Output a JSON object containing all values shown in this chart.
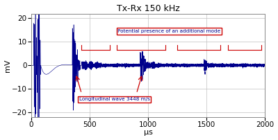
{
  "title": "Tx-Rx 150 kHz",
  "xlabel": "μs",
  "ylabel": "mV",
  "xlim": [
    0,
    2000
  ],
  "ylim": [
    -22,
    22
  ],
  "yticks": [
    -20,
    -10,
    0,
    10,
    20
  ],
  "xticks": [
    0,
    500,
    1000,
    1500,
    2000
  ],
  "line_color": "#00008B",
  "bg_color": "#ffffff",
  "grid_color": "#c0c0c0",
  "annotation1_text": "Potential presence of an additional mode",
  "annotation2_text": "Longitudinal wave 3448 m/s",
  "ann_color": "#cc0000",
  "ann_text_color": "#00008B",
  "title_fontsize": 9,
  "label_fontsize": 8,
  "tick_fontsize": 7.5
}
